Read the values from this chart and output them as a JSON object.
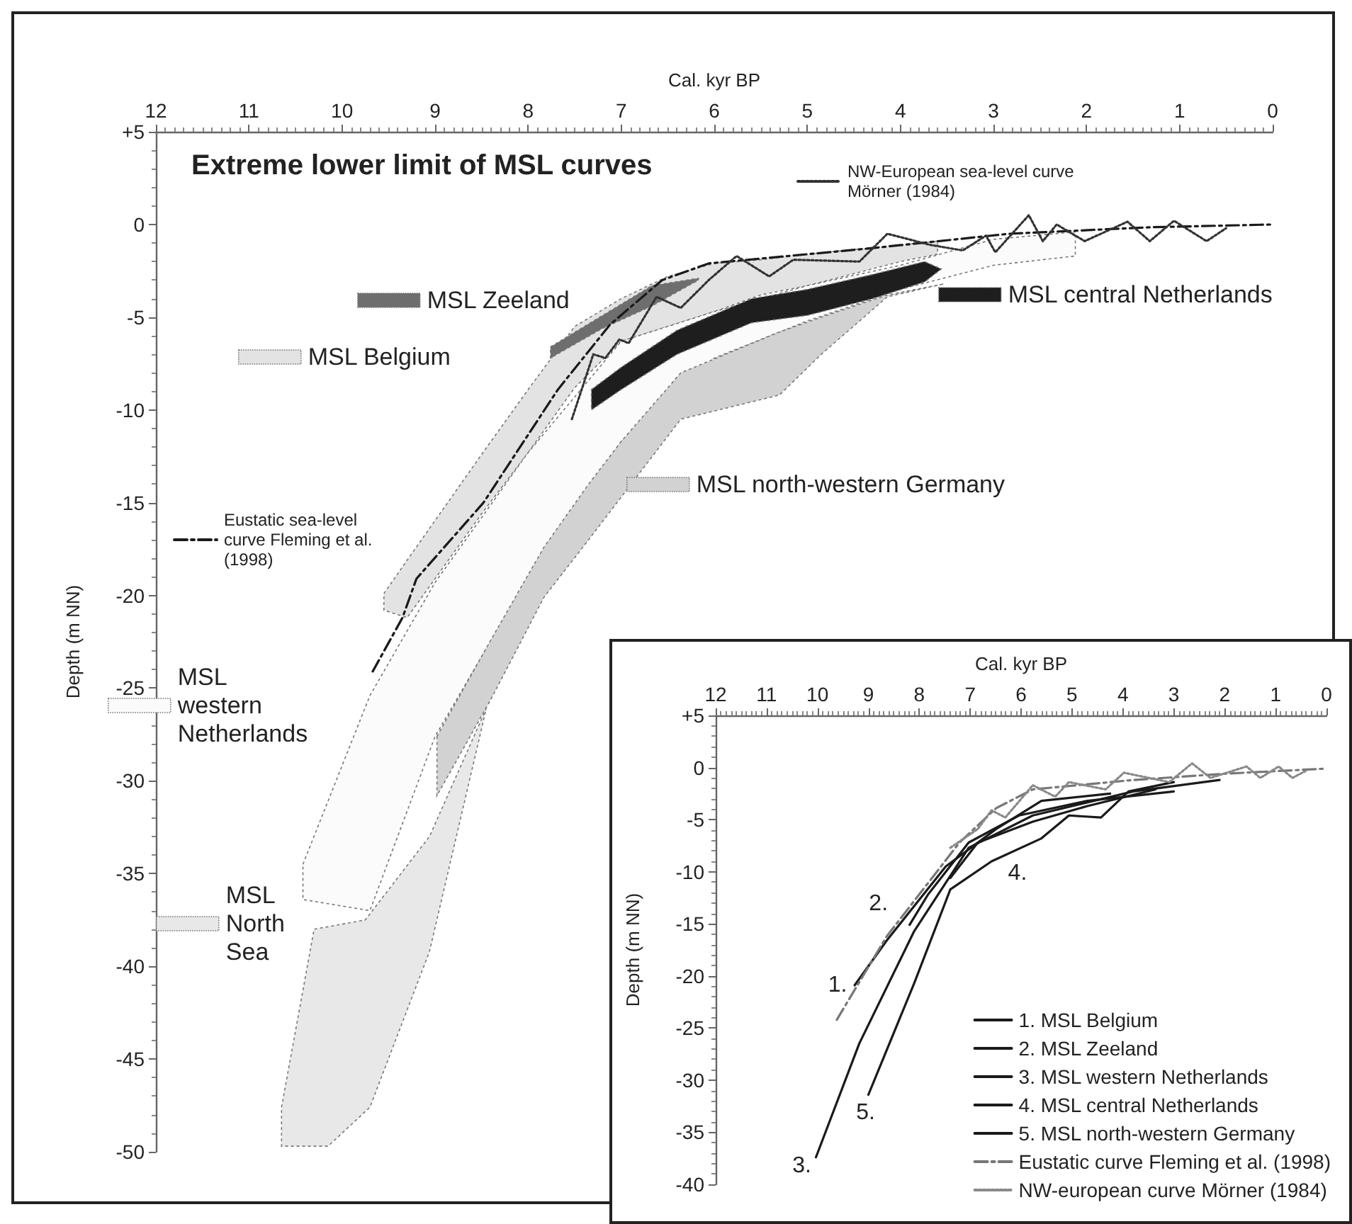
{
  "chart_data": [
    {
      "type": "area",
      "title": "Extreme lower limit of MSL curves",
      "xlabel": "Cal. kyr BP",
      "ylabel": "Depth (m NN)",
      "xlim": [
        12,
        0
      ],
      "xticks": [
        12,
        11,
        10,
        9,
        8,
        7,
        6,
        5,
        4,
        3,
        2,
        1,
        0
      ],
      "ylim": [
        -50,
        5
      ],
      "yticks": [
        {
          "value": 5,
          "label": "+5"
        },
        0,
        -5,
        -10,
        -15,
        -20,
        -25,
        -30,
        -35,
        -40,
        -45,
        -50
      ],
      "legend": "left",
      "series": [
        {
          "name": "MSL North Sea",
          "color": "#e8e8e8",
          "x": [
            10.65,
            10.3,
            9.75,
            9.06,
            8.45,
            8.45,
            9.06,
            9.7,
            10.15,
            10.65
          ],
          "values": [
            -47.6,
            -38,
            -37.5,
            -33,
            -26.1,
            -26.1,
            -39.2,
            -47.6,
            -49.7,
            -49.7
          ]
        },
        {
          "name": "MSL Belgium",
          "color": "#e3e3e3",
          "x": [
            9.55,
            9.3,
            8.5,
            8.0,
            7.5,
            7.0,
            6.5,
            6.0,
            5.5,
            5.0,
            4.0,
            3.6,
            3.6,
            4.0,
            5.0,
            5.5,
            6.0,
            6.5,
            7.0,
            7.5,
            8.0,
            8.5,
            9.3,
            9.55
          ],
          "values": [
            -19.9,
            -18.1,
            -12.4,
            -8.9,
            -5.5,
            -4.0,
            -2.8,
            -2.1,
            -1.9,
            -1.6,
            -1.1,
            -0.9,
            -1.6,
            -2.0,
            -3.3,
            -3.8,
            -4.7,
            -5.5,
            -6.3,
            -8.8,
            -12.3,
            -15.6,
            -21.2,
            -20.8
          ]
        },
        {
          "name": "MSL western Netherlands",
          "color": "#fbfbfb",
          "x": [
            10.42,
            9.7,
            9.0,
            8.0,
            7.0,
            6.0,
            5.0,
            4.0,
            3.0,
            2.12,
            2.12,
            3.0,
            4.0,
            5.0,
            6.0,
            7.0,
            8.0,
            9.0,
            9.7,
            10.42
          ],
          "values": [
            -34.5,
            -25.4,
            -19.3,
            -12.3,
            -6.3,
            -4.7,
            -3.3,
            -2.2,
            -0.8,
            -0.4,
            -1.7,
            -2.2,
            -3.5,
            -5.2,
            -7.2,
            -11.7,
            -19,
            -27.6,
            -37.0,
            -36.4
          ]
        },
        {
          "name": "MSL north-western Germany",
          "color": "#d2d2d2",
          "x": [
            8.98,
            8.4,
            7.83,
            7.35,
            7.0,
            6.36,
            5.3,
            4.85,
            4.14,
            3.53,
            4.14,
            4.85,
            5.3,
            6.36,
            7.0,
            7.35,
            7.83,
            8.4,
            8.98
          ],
          "values": [
            -27.6,
            -22.4,
            -17.4,
            -14.0,
            -11.7,
            -8.0,
            -5.8,
            -5.0,
            -3.8,
            -3.2,
            -3.9,
            -7.0,
            -9.2,
            -10.5,
            -14.7,
            -17.0,
            -20.1,
            -25.6,
            -30.8
          ]
        },
        {
          "name": "MSL Zeeland",
          "color": "#6e6e6e",
          "x": [
            7.76,
            7.2,
            6.67,
            6.17,
            6.17,
            6.67,
            7.2,
            7.76
          ],
          "values": [
            -6.6,
            -4.9,
            -3.3,
            -2.9,
            -3.0,
            -4.4,
            -5.6,
            -7.2
          ]
        },
        {
          "name": "MSL central Netherlands",
          "color": "#1e1e1e",
          "x": [
            7.32,
            7.0,
            6.4,
            5.6,
            5.0,
            4.3,
            3.74,
            3.56,
            3.74,
            4.3,
            5.0,
            5.6,
            6.4,
            7.0,
            7.32
          ],
          "values": [
            -8.9,
            -7.7,
            -5.7,
            -4.0,
            -3.5,
            -2.7,
            -2.0,
            -2.4,
            -3.1,
            -4.0,
            -4.9,
            -5.3,
            -7.0,
            -8.9,
            -10.0
          ]
        },
        {
          "name": "Eustatic sea-level curve Fleming et al. (1998)",
          "type": "line",
          "color": "#1a1a1a",
          "line_style": "dashed",
          "x": [
            9.67,
            9.35,
            9.2,
            8.48,
            7.68,
            7.12,
            6.56,
            6.06,
            4.35,
            2.83,
            1.32,
            0
          ],
          "values": [
            -24.1,
            -21.2,
            -19.1,
            -15.0,
            -8.9,
            -5.4,
            -3.0,
            -2.1,
            -1.3,
            -0.5,
            -0.15,
            0
          ]
        },
        {
          "name": "NW-European sea-level curve Mörner (1984)",
          "type": "line",
          "color": "#333333",
          "line_style": "dotted",
          "x": [
            7.53,
            7.3,
            7.17,
            7.02,
            6.92,
            6.62,
            6.36,
            6.06,
            5.76,
            5.41,
            5.15,
            4.44,
            4.14,
            3.68,
            3.33,
            3.08,
            2.98,
            2.62,
            2.47,
            2.32,
            2.02,
            1.56,
            1.32,
            1.06,
            0.71,
            0.5
          ],
          "values": [
            -10.5,
            -7.0,
            -7.2,
            -6.2,
            -6.4,
            -3.9,
            -4.5,
            -3.0,
            -1.7,
            -2.8,
            -1.9,
            -2.0,
            -0.5,
            -1.1,
            -1.4,
            -0.6,
            -1.5,
            0.5,
            -0.9,
            0,
            -0.9,
            0.15,
            -0.9,
            0.2,
            -0.9,
            -0.2
          ]
        }
      ]
    },
    {
      "type": "line",
      "xlabel": "Cal. kyr BP",
      "ylabel": "Depth (m NN)",
      "xlim": [
        12,
        0
      ],
      "xticks": [
        12,
        11,
        10,
        9,
        8,
        7,
        6,
        5,
        4,
        3,
        2,
        1,
        0
      ],
      "ylim": [
        -40,
        5
      ],
      "yticks": [
        {
          "value": 5,
          "label": "+5"
        },
        0,
        -5,
        -10,
        -15,
        -20,
        -25,
        -30,
        -35,
        -40
      ],
      "legend": "bottom right",
      "marker": "none",
      "annotations": [
        {
          "text": "1.",
          "x": 9.27,
          "y": -20.9
        },
        {
          "text": "2.",
          "x": 8.19,
          "y": -15.1
        },
        {
          "text": "3.",
          "x": 10.03,
          "y": -37.4
        },
        {
          "text": "4.",
          "x": 6.85,
          "y": -7.2
        },
        {
          "text": "5.",
          "x": 9.0,
          "y": -31.4
        }
      ],
      "series": [
        {
          "name": "1. MSL Belgium",
          "color": "#1a1a1a",
          "line_style": "solid",
          "x": [
            9.27,
            8.64,
            7.48,
            6.49,
            5.6,
            4.25
          ],
          "values": [
            -20.9,
            -16.6,
            -9.5,
            -5.9,
            -3.2,
            -2.5
          ]
        },
        {
          "name": "2. MSL Zeeland",
          "color": "#1a1a1a",
          "line_style": "solid",
          "x": [
            8.19,
            7.83,
            7.03,
            6.04,
            4.7,
            3.0
          ],
          "values": [
            -15.1,
            -12.2,
            -7.2,
            -4.6,
            -3.2,
            -2.3
          ]
        },
        {
          "name": "3. MSL western Netherlands",
          "color": "#1a1a1a",
          "line_style": "solid",
          "x": [
            10.03,
            9.18,
            8.1,
            7.03,
            5.77,
            3.8,
            2.1
          ],
          "values": [
            -37.4,
            -26.5,
            -15.7,
            -7.7,
            -4.6,
            -2.3,
            -1.2
          ]
        },
        {
          "name": "4. MSL central Netherlands",
          "color": "#1a1a1a",
          "line_style": "solid",
          "x": [
            7.39,
            6.85,
            5.77,
            4.7,
            3.36
          ],
          "values": [
            -10.6,
            -7.2,
            -5.2,
            -3.7,
            -2.1
          ]
        },
        {
          "name": "5. MSL north-western Germany",
          "color": "#1a1a1a",
          "line_style": "solid",
          "x": [
            9.0,
            8.1,
            7.39,
            6.58,
            5.6,
            5.06,
            4.43,
            3.89,
            3.0
          ],
          "values": [
            -31.4,
            -20.7,
            -11.7,
            -9.0,
            -6.8,
            -4.6,
            -4.8,
            -2.3,
            -1.4
          ]
        },
        {
          "name": "Eustatic curve Fleming et al. (1998)",
          "color": "#777777",
          "line_style": "dashed",
          "x": [
            9.62,
            8.64,
            7.21,
            6.49,
            5.77,
            3.8,
            2.01,
            0
          ],
          "values": [
            -24.2,
            -16.2,
            -7.2,
            -3.9,
            -2.1,
            -1.2,
            -0.6,
            -0.1
          ]
        },
        {
          "name": "NW-european curve Mörner (1984)",
          "color": "#888888",
          "line_style": "dotted",
          "x": [
            7.39,
            6.85,
            6.58,
            6.31,
            5.77,
            5.33,
            5.06,
            4.34,
            3.98,
            3.09,
            2.64,
            2.28,
            1.57,
            1.3,
            0.94,
            0.67,
            0.4
          ],
          "values": [
            -7.7,
            -5.9,
            -4.1,
            -4.8,
            -1.7,
            -2.8,
            -1.4,
            -2.1,
            -0.5,
            -1.4,
            0.4,
            -1.0,
            0.1,
            -1.0,
            0.1,
            -1.0,
            -0.3
          ]
        }
      ]
    }
  ]
}
